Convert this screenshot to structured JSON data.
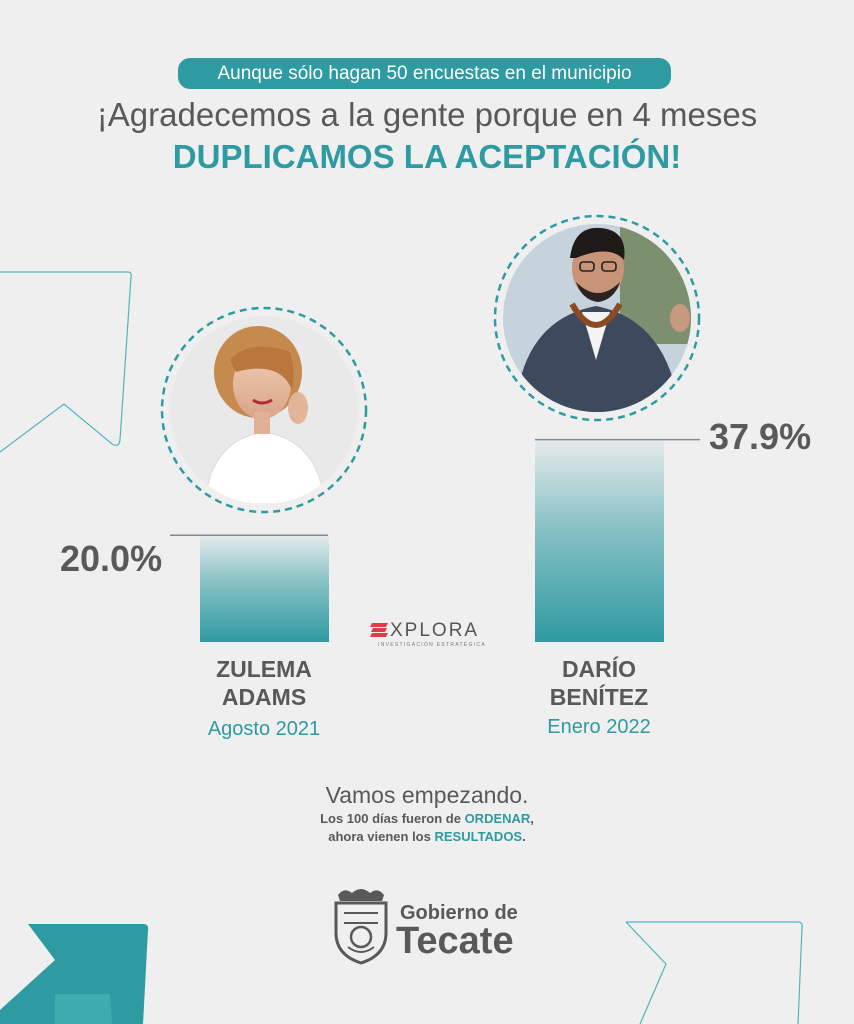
{
  "header": {
    "pill_text": "Aunque sólo hagan 50 encuestas en el municipio",
    "headline": "¡Agradecemos a la gente porque en 4 meses",
    "headline_accent": "DUPLICAMOS LA ACEPTACIÓN!"
  },
  "chart_data": {
    "type": "bar",
    "categories": [
      "ZULEMA ADAMS",
      "DARÍO BENÍTEZ"
    ],
    "values": [
      20.0,
      37.9
    ],
    "value_labels": [
      "20.0%",
      "37.9%"
    ],
    "name_lines": [
      [
        "ZULEMA",
        "ADAMS"
      ],
      [
        "DARÍO",
        "BENÍTEZ"
      ]
    ],
    "dates": [
      "Agosto 2021",
      "Enero 2022"
    ],
    "unit": "%",
    "ylim": [
      0,
      40
    ],
    "grid": false
  },
  "pollster": {
    "name": "XPLORA",
    "tagline": "INVESTIGACIÓN ESTRATÉGICA",
    "icon": "explora-logo-icon"
  },
  "footer": {
    "tagline": "Vamos empezando.",
    "line1_before": "Los 100 días fueron de ",
    "line1_highlight": "ORDENAR",
    "line1_after": ",",
    "line2_before": "ahora vienen los ",
    "line2_highlight": "RESULTADOS",
    "line2_after": "."
  },
  "brand": {
    "line1": "Gobierno de",
    "line2": "Tecate",
    "icon": "tecate-coat-of-arms-icon"
  },
  "colors": {
    "accent": "#2e9aa1",
    "text": "#595959",
    "background": "#efefef"
  }
}
